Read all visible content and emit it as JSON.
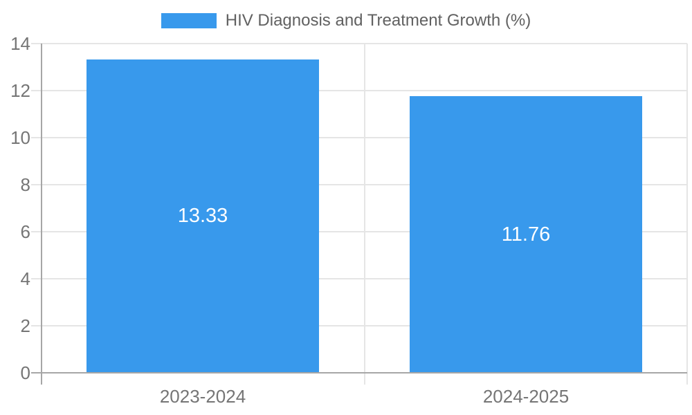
{
  "chart_data": {
    "type": "bar",
    "title": "HIV Diagnosis and Treatment Growth (%)",
    "legend": {
      "position": "top",
      "label": "HIV Diagnosis and Treatment Growth (%)"
    },
    "categories": [
      "2023-2024",
      "2024-2025"
    ],
    "values": [
      13.33,
      11.76
    ],
    "value_labels": [
      "13.33",
      "11.76"
    ],
    "xlabel": "",
    "ylabel": "",
    "ylim": [
      0,
      14
    ],
    "yticks": [
      0,
      2,
      4,
      6,
      8,
      10,
      12,
      14
    ],
    "grid": true,
    "colors": {
      "bar": "#3899ec",
      "gridline": "#e5e5e5",
      "axis": "#a6a6a6",
      "tick_label": "#757575",
      "legend_text": "#616161",
      "value_label": "#ffffff",
      "background": "#ffffff"
    }
  }
}
